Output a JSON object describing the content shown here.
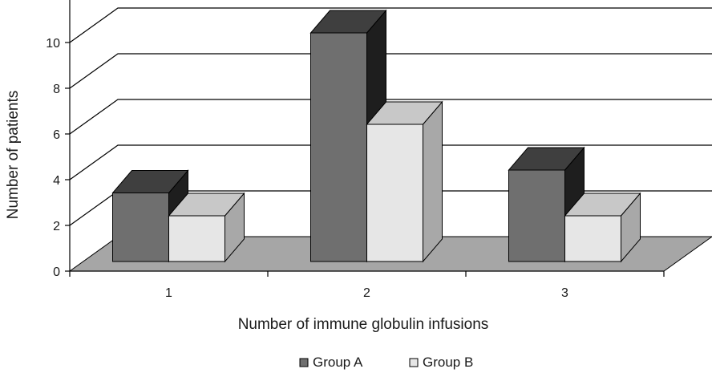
{
  "chart_data": {
    "type": "bar",
    "three_d": true,
    "title": "",
    "xlabel": "Number of immune globulin infusions",
    "ylabel": "Number of patients",
    "categories": [
      "1",
      "2",
      "3"
    ],
    "series": [
      {
        "name": "Group A",
        "values": [
          3,
          10,
          4
        ],
        "color": "#6f6f6f"
      },
      {
        "name": "Group B",
        "values": [
          2,
          6,
          2
        ],
        "color": "#e6e6e6"
      }
    ],
    "ylim": [
      0,
      10
    ],
    "yticks": [
      0,
      2,
      4,
      6,
      8,
      10
    ],
    "grid": true,
    "legend": "bottom-center"
  },
  "colors": {
    "floor": "#a6a6a6",
    "groupA_top": "#3f3f3f",
    "groupA_side": "#1e1e1e",
    "groupB_top": "#c8c8c8",
    "groupB_side": "#a8a8a8",
    "outline": "#000000"
  }
}
